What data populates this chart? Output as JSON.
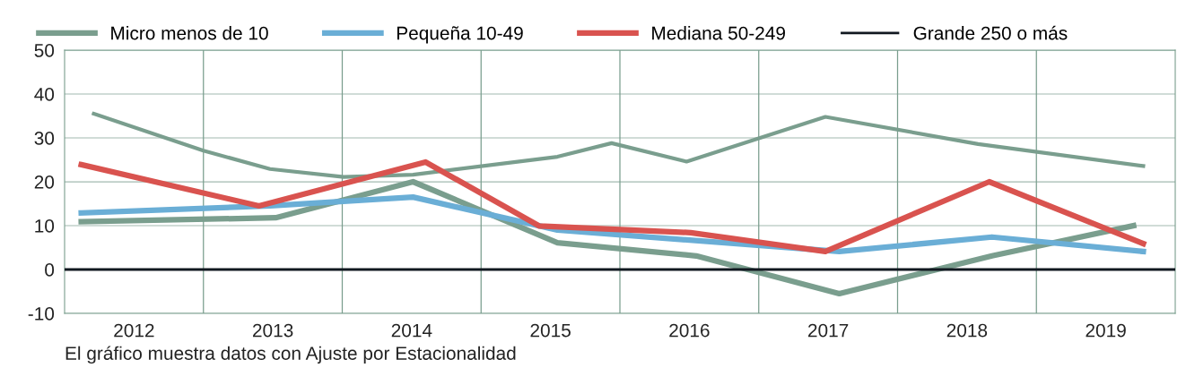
{
  "chart_data": {
    "type": "line",
    "series": [
      {
        "color": "#7a9e8e",
        "x": [
          2012.21,
          2013.0,
          2013.48,
          2014.01,
          2014.51,
          2015.55,
          2015.94,
          2016.48,
          2017.48,
          2018.58,
          2019.77
        ],
        "values": [
          35.5,
          27.1,
          22.9,
          21.1,
          21.6,
          25.7,
          28.8,
          24.6,
          34.8,
          28.6,
          23.6
        ]
      },
      {
        "name": "Micro menos de 10",
        "color": "#7a9e8e",
        "x": [
          2012.12,
          2013.52,
          2014.51,
          2015.55,
          2016.55,
          2017.58,
          2018.68,
          2019.7
        ],
        "values": [
          10.9,
          11.8,
          20.0,
          6.1,
          3.1,
          -5.5,
          3.1,
          10.0
        ]
      },
      {
        "name": "Pequeña 10-49",
        "color": "#6aaed6",
        "x": [
          2012.12,
          2013.48,
          2014.51,
          2015.55,
          2017.58,
          2018.68,
          2019.77
        ],
        "values": [
          12.9,
          14.5,
          16.5,
          9.0,
          4.1,
          7.4,
          4.1
        ]
      },
      {
        "name": "Mediana 50-249",
        "color": "#d9534f",
        "x": [
          2012.12,
          2013.4,
          2014.6,
          2015.42,
          2016.51,
          2017.48,
          2018.66,
          2019.77
        ],
        "values": [
          23.9,
          14.5,
          24.5,
          9.9,
          8.4,
          4.1,
          20.0,
          5.9
        ]
      },
      {
        "name": "Grande 250 o más",
        "color": "#111820",
        "x": [
          2012,
          2020
        ],
        "values": [
          0,
          0
        ]
      }
    ],
    "xlim": [
      2012,
      2020
    ],
    "xticks": [
      {
        "value": 2012.5,
        "label": "2012"
      },
      {
        "value": 2013,
        "label": null
      },
      {
        "value": 2013.5,
        "label": "2013"
      },
      {
        "value": 2014,
        "label": null
      },
      {
        "value": 2014.5,
        "label": "2014"
      },
      {
        "value": 2015,
        "label": null
      },
      {
        "value": 2015.5,
        "label": "2015"
      },
      {
        "value": 2016,
        "label": null
      },
      {
        "value": 2016.5,
        "label": "2016"
      },
      {
        "value": 2017,
        "label": null
      },
      {
        "value": 2017.5,
        "label": "2017"
      },
      {
        "value": 2018,
        "label": null
      },
      {
        "value": 2018.5,
        "label": "2018"
      },
      {
        "value": 2019,
        "label": null
      },
      {
        "value": 2019.5,
        "label": "2019"
      }
    ],
    "ylim": [
      -10,
      50
    ],
    "yticks": [
      -10,
      0,
      10,
      20,
      30,
      40,
      50
    ],
    "grid": true,
    "legend": "top",
    "marker": "none",
    "line_style": "solid",
    "annotations": [
      "El gráfico muestra datos con Ajuste por Estacionalidad"
    ]
  }
}
